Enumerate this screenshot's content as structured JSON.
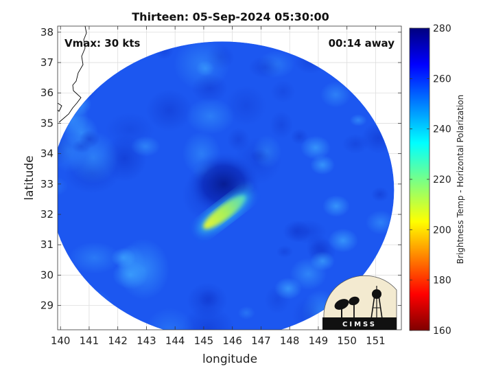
{
  "chart_data": {
    "type": "heatmap",
    "title": "Thirteen: 05-Sep-2024 05:30:00",
    "xlabel": "longitude",
    "ylabel": "latitude",
    "xlim": [
      139.9,
      151.9
    ],
    "ylim": [
      28.2,
      38.2
    ],
    "xticks": [
      "140",
      "141",
      "142",
      "143",
      "144",
      "145",
      "146",
      "147",
      "148",
      "149",
      "150",
      "151"
    ],
    "yticks": [
      "29",
      "30",
      "31",
      "32",
      "33",
      "34",
      "35",
      "36",
      "37",
      "38"
    ],
    "grid": true,
    "scan_center": {
      "lon": 145.65,
      "lat": 32.8
    },
    "storm_center": {
      "lon": 145.7,
      "lat": 33.0
    },
    "warm_band": {
      "lon_start": 145.0,
      "lat_start": 31.55,
      "lon_end": 146.45,
      "lat_end": 32.6,
      "min_temp": 205
    },
    "colorbar": {
      "label": "Brightness Temp - Horizontal Polarization",
      "min": 160,
      "max": 280,
      "ticks": [
        "160",
        "180",
        "200",
        "220",
        "240",
        "260",
        "280"
      ],
      "colormap": "jet"
    },
    "annotations": {
      "vmax": "Vmax: 30 kts",
      "away": "00:14 away"
    }
  },
  "logo": {
    "text": "CIMSS"
  },
  "colors": {
    "background_field": "#1c57f0",
    "deep_blue": "#0a23b8",
    "warm_band": "#c8e63c",
    "coastline": "#000000"
  }
}
